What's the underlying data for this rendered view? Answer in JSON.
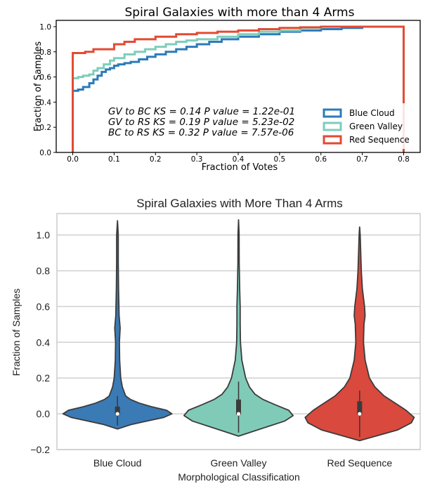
{
  "chart_data": [
    {
      "type": "line",
      "title": "Spiral Galaxies with more than 4 Arms",
      "xlabel": "Fraction of Votes",
      "ylabel": "Fraction of Samples",
      "xlim": [
        -0.04,
        0.84
      ],
      "ylim": [
        0.0,
        1.05
      ],
      "xticks": [
        "0.0",
        "0.1",
        "0.2",
        "0.3",
        "0.4",
        "0.5",
        "0.6",
        "0.7",
        "0.8"
      ],
      "yticks": [
        "0.0",
        "0.2",
        "0.4",
        "0.6",
        "0.8",
        "1.0"
      ],
      "grid": false,
      "legend_position": "lower-right",
      "annotations": [
        "GV to BC KS = 0.14 P value = 1.22e-01",
        "GV to RS KS = 0.19 P value = 5.23e-02",
        "BC to RS KS = 0.32 P value = 7.57e-06"
      ],
      "series": [
        {
          "name": "Blue Cloud",
          "color": "#2b7bba",
          "x": [
            0.0,
            0.0,
            0.013,
            0.025,
            0.04,
            0.05,
            0.06,
            0.07,
            0.08,
            0.09,
            0.1,
            0.11,
            0.125,
            0.14,
            0.16,
            0.18,
            0.2,
            0.225,
            0.25,
            0.275,
            0.3,
            0.33,
            0.36,
            0.4,
            0.45,
            0.5,
            0.55,
            0.6,
            0.65,
            0.7,
            0.8
          ],
          "y": [
            0.0,
            0.49,
            0.5,
            0.52,
            0.55,
            0.58,
            0.61,
            0.64,
            0.66,
            0.67,
            0.69,
            0.7,
            0.71,
            0.72,
            0.74,
            0.76,
            0.78,
            0.8,
            0.82,
            0.84,
            0.86,
            0.88,
            0.9,
            0.92,
            0.94,
            0.96,
            0.97,
            0.98,
            0.99,
            1.0,
            1.0
          ]
        },
        {
          "name": "Green Valley",
          "color": "#7fcdbb",
          "x": [
            0.0,
            0.0,
            0.013,
            0.025,
            0.04,
            0.05,
            0.06,
            0.075,
            0.09,
            0.1,
            0.125,
            0.15,
            0.175,
            0.2,
            0.225,
            0.25,
            0.275,
            0.3,
            0.35,
            0.4,
            0.45,
            0.5,
            0.55,
            0.6,
            0.7,
            0.8
          ],
          "y": [
            0.0,
            0.59,
            0.6,
            0.61,
            0.62,
            0.65,
            0.67,
            0.7,
            0.73,
            0.75,
            0.78,
            0.8,
            0.82,
            0.84,
            0.86,
            0.88,
            0.89,
            0.9,
            0.92,
            0.94,
            0.96,
            0.97,
            0.99,
            1.0,
            1.0,
            1.0
          ]
        },
        {
          "name": "Red Sequence",
          "color": "#e34a33",
          "x": [
            0.0,
            0.0,
            0.03,
            0.05,
            0.1,
            0.125,
            0.15,
            0.2,
            0.25,
            0.3,
            0.35,
            0.4,
            0.45,
            0.5,
            0.55,
            0.6,
            0.7,
            0.8,
            0.8
          ],
          "y": [
            0.0,
            0.79,
            0.8,
            0.82,
            0.86,
            0.88,
            0.9,
            0.92,
            0.94,
            0.95,
            0.96,
            0.97,
            0.98,
            0.99,
            0.995,
            1.0,
            1.0,
            1.0,
            0.0
          ]
        }
      ]
    },
    {
      "type": "violin",
      "title": "Spiral Galaxies with More Than 4 Arms",
      "xlabel": "Morphological Classification",
      "ylabel": "Fraction of Samples",
      "ylim": [
        -0.2,
        1.12
      ],
      "yticks": [
        "−0.2",
        "0.0",
        "0.2",
        "0.4",
        "0.6",
        "0.8",
        "1.0"
      ],
      "grid": true,
      "categories": [
        "Blue Cloud",
        "Green Valley",
        "Red Sequence"
      ],
      "series": [
        {
          "name": "Blue Cloud",
          "color": "#3a7ab5",
          "median": 0.0,
          "q1": -0.005,
          "q3": 0.04,
          "whisker_high": 0.1,
          "min": -0.085,
          "max": 1.08,
          "profile": [
            [
              -0.085,
              0.0
            ],
            [
              -0.06,
              0.25
            ],
            [
              -0.04,
              0.55
            ],
            [
              -0.02,
              0.85
            ],
            [
              0.0,
              1.0
            ],
            [
              0.02,
              0.9
            ],
            [
              0.04,
              0.62
            ],
            [
              0.06,
              0.4
            ],
            [
              0.08,
              0.24
            ],
            [
              0.1,
              0.15
            ],
            [
              0.15,
              0.09
            ],
            [
              0.2,
              0.06
            ],
            [
              0.3,
              0.04
            ],
            [
              0.4,
              0.035
            ],
            [
              0.48,
              0.05
            ],
            [
              0.55,
              0.03
            ],
            [
              0.7,
              0.02
            ],
            [
              0.85,
              0.015
            ],
            [
              1.0,
              0.015
            ],
            [
              1.08,
              0.0
            ]
          ]
        },
        {
          "name": "Green Valley",
          "color": "#80cbb8",
          "median": 0.0,
          "q1": -0.005,
          "q3": 0.08,
          "whisker_high": 0.18,
          "min": -0.125,
          "max": 1.085,
          "profile": [
            [
              -0.125,
              0.0
            ],
            [
              -0.1,
              0.25
            ],
            [
              -0.07,
              0.55
            ],
            [
              -0.04,
              0.85
            ],
            [
              -0.01,
              1.0
            ],
            [
              0.02,
              0.92
            ],
            [
              0.05,
              0.68
            ],
            [
              0.08,
              0.45
            ],
            [
              0.11,
              0.3
            ],
            [
              0.15,
              0.2
            ],
            [
              0.2,
              0.13
            ],
            [
              0.3,
              0.06
            ],
            [
              0.4,
              0.035
            ],
            [
              0.5,
              0.03
            ],
            [
              0.6,
              0.03
            ],
            [
              0.7,
              0.02
            ],
            [
              0.85,
              0.012
            ],
            [
              1.0,
              0.01
            ],
            [
              1.085,
              0.0
            ]
          ]
        },
        {
          "name": "Red Sequence",
          "color": "#d9493d",
          "median": 0.0,
          "q1": -0.005,
          "q3": 0.07,
          "whisker_high": 0.13,
          "min": -0.15,
          "max": 1.045,
          "profile": [
            [
              -0.15,
              0.0
            ],
            [
              -0.12,
              0.35
            ],
            [
              -0.09,
              0.7
            ],
            [
              -0.05,
              0.95
            ],
            [
              -0.02,
              1.0
            ],
            [
              0.02,
              0.85
            ],
            [
              0.06,
              0.65
            ],
            [
              0.1,
              0.45
            ],
            [
              0.15,
              0.28
            ],
            [
              0.2,
              0.18
            ],
            [
              0.3,
              0.1
            ],
            [
              0.4,
              0.07
            ],
            [
              0.5,
              0.08
            ],
            [
              0.55,
              0.1
            ],
            [
              0.6,
              0.09
            ],
            [
              0.7,
              0.05
            ],
            [
              0.8,
              0.03
            ],
            [
              0.9,
              0.02
            ],
            [
              1.0,
              0.01
            ],
            [
              1.045,
              0.0
            ]
          ]
        }
      ]
    }
  ]
}
